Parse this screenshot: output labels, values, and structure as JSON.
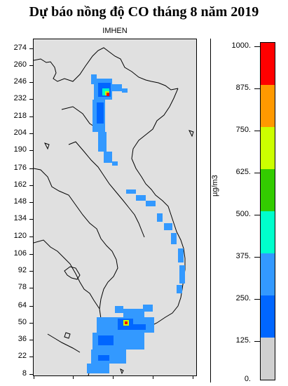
{
  "title": "Dự báo nồng độ CO tháng 8 năm 2019",
  "subtitle": "IMHEN",
  "y_ticks": [
    "274",
    "260",
    "246",
    "232",
    "218",
    "204",
    "190",
    "176",
    "162",
    "148",
    "134",
    "120",
    "106",
    "92",
    "78",
    "64",
    "50",
    "36",
    "22",
    "8"
  ],
  "unit_label": "µg/m3",
  "colorbar": {
    "labels": [
      "1000.",
      "875.",
      "750.",
      "625.",
      "500.",
      "375.",
      "250.",
      "125.",
      "0."
    ],
    "colors": [
      "#ff0000",
      "#ff9900",
      "#ccff00",
      "#33cc00",
      "#00ffcc",
      "#3399ff",
      "#0066ff",
      "#d0d0d0"
    ]
  },
  "colors": {
    "map_background": "#e0e0e0",
    "low_concentration": "#3399ff",
    "mid_concentration": "#0066ff",
    "hotspot": "#ff0000"
  }
}
